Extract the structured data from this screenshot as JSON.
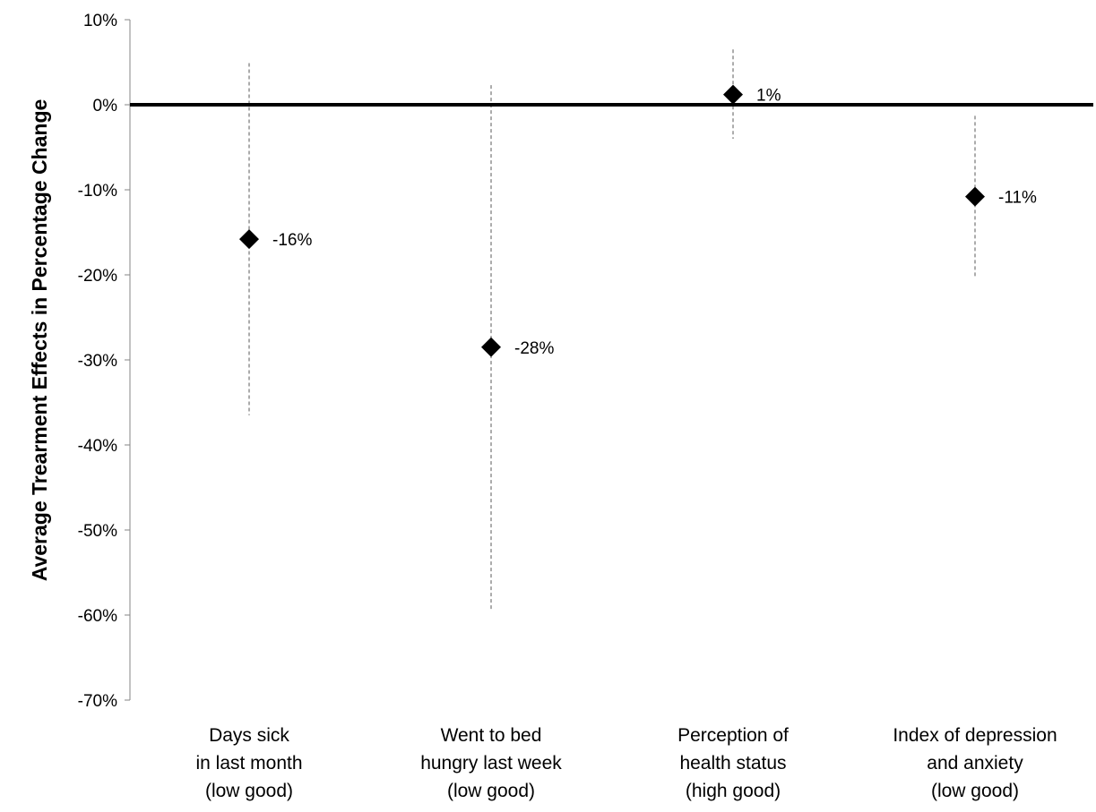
{
  "chart_data": {
    "type": "scatter",
    "ylabel": "Average Trearment Effects in Percentage Change",
    "ylim": [
      -0.7,
      0.1
    ],
    "yticks": [
      0.1,
      0.0,
      -0.1,
      -0.2,
      -0.3,
      -0.4,
      -0.5,
      -0.6,
      -0.7
    ],
    "ytick_labels": [
      "10%",
      "0%",
      "-10%",
      "-20%",
      "-30%",
      "-40%",
      "-50%",
      "-60%",
      "-70%"
    ],
    "grid": false,
    "legend": "none",
    "marker": "diamond",
    "reference_line": 0,
    "categories": [
      {
        "lines": [
          "Days sick",
          "in last month",
          "(low good)"
        ],
        "value": -0.158,
        "label": "-16%",
        "ci_low": -0.365,
        "ci_high": 0.049
      },
      {
        "lines": [
          "Went to bed",
          "hungry last week",
          "(low good)"
        ],
        "value": -0.285,
        "label": "-28%",
        "ci_low": -0.593,
        "ci_high": 0.023
      },
      {
        "lines": [
          "Perception of",
          "health status",
          "(high good)"
        ],
        "value": 0.012,
        "label": "1%",
        "ci_low": -0.04,
        "ci_high": 0.065
      },
      {
        "lines": [
          "Index of depression",
          "and anxiety",
          "(low good)"
        ],
        "value": -0.108,
        "label": "-11%",
        "ci_low": -0.203,
        "ci_high": -0.013
      }
    ],
    "colors": {
      "marker": "#000000",
      "axis": "#868686",
      "zero_line": "#000000",
      "error_bar": "#595959"
    }
  }
}
